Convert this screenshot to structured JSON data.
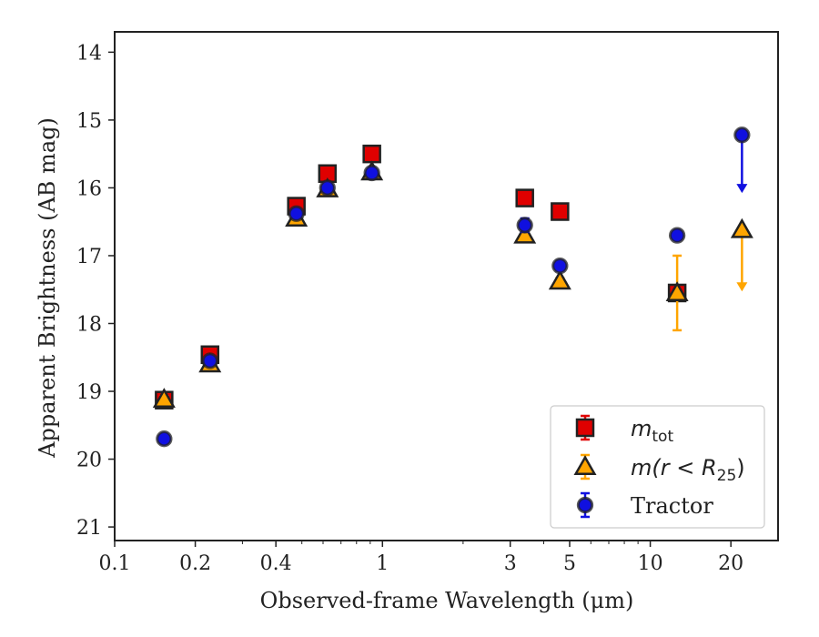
{
  "chart_data": {
    "type": "scatter",
    "xlabel": "Observed-frame Wavelength (μm)",
    "ylabel": "Apparent Brightness (AB mag)",
    "x_scale": "log",
    "xlim": [
      0.1,
      30
    ],
    "ylim": [
      21.2,
      13.7
    ],
    "y_inverted": true,
    "x_ticks": [
      0.1,
      0.2,
      0.4,
      1,
      3,
      5,
      10,
      20
    ],
    "x_tick_labels": [
      "0.1",
      "0.2",
      "0.4",
      "1",
      "3",
      "5",
      "10",
      "20"
    ],
    "y_ticks": [
      14,
      15,
      16,
      17,
      18,
      19,
      20,
      21
    ],
    "y_tick_labels": [
      "14",
      "15",
      "16",
      "17",
      "18",
      "19",
      "20",
      "21"
    ],
    "grid": false,
    "legend_position": "lower-right",
    "series": [
      {
        "name": "m_tot",
        "label_main": "m",
        "label_sub": "tot",
        "marker": "square",
        "color": "#e00000",
        "edge_color": "#222222",
        "points": [
          {
            "x": 0.153,
            "y": 19.13,
            "err": 0.07
          },
          {
            "x": 0.227,
            "y": 18.46,
            "err": 0.05
          },
          {
            "x": 0.477,
            "y": 16.27,
            "err": 0.05
          },
          {
            "x": 0.623,
            "y": 15.79,
            "err": 0.05
          },
          {
            "x": 0.913,
            "y": 15.5,
            "err": 0.05
          },
          {
            "x": 3.4,
            "y": 16.15,
            "err": 0.05
          },
          {
            "x": 4.6,
            "y": 16.35,
            "err": 0.05
          },
          {
            "x": 12.6,
            "y": 17.55,
            "err": 0.08
          }
        ]
      },
      {
        "name": "m(r < R_25)",
        "label_pre": "m(r < R",
        "label_sub": "25",
        "label_post": ")",
        "marker": "triangle",
        "color": "#ffa500",
        "edge_color": "#222222",
        "points": [
          {
            "x": 0.153,
            "y": 19.12,
            "err": 0.05
          },
          {
            "x": 0.227,
            "y": 18.6,
            "err": 0.05
          },
          {
            "x": 0.477,
            "y": 16.45,
            "err": 0.05
          },
          {
            "x": 0.623,
            "y": 16.02,
            "err": 0.05
          },
          {
            "x": 0.913,
            "y": 15.77,
            "err": 0.05
          },
          {
            "x": 3.4,
            "y": 16.7,
            "err": 0.05
          },
          {
            "x": 4.6,
            "y": 17.38,
            "err": 0.05
          },
          {
            "x": 12.6,
            "y": 17.55,
            "err_low": 0.55,
            "err_high": 0.55
          },
          {
            "x": 22.0,
            "y": 16.62,
            "upper_limit_to": 17.5
          }
        ]
      },
      {
        "name": "Tractor",
        "label_main": "Tractor",
        "marker": "circle",
        "color": "#1010e0",
        "edge_color": "#222222",
        "points": [
          {
            "x": 0.153,
            "y": 19.7,
            "err": 0.05
          },
          {
            "x": 0.227,
            "y": 18.55,
            "err": 0.05
          },
          {
            "x": 0.477,
            "y": 16.38,
            "err": 0.05
          },
          {
            "x": 0.623,
            "y": 16.0,
            "err": 0.05
          },
          {
            "x": 0.913,
            "y": 15.78,
            "err": 0.07
          },
          {
            "x": 3.4,
            "y": 16.55,
            "err": 0.1
          },
          {
            "x": 4.6,
            "y": 17.15,
            "err": 0.07
          },
          {
            "x": 12.6,
            "y": 16.7,
            "err": 0.05
          },
          {
            "x": 22.0,
            "y": 15.22,
            "upper_limit_to": 16.05
          }
        ]
      }
    ]
  }
}
